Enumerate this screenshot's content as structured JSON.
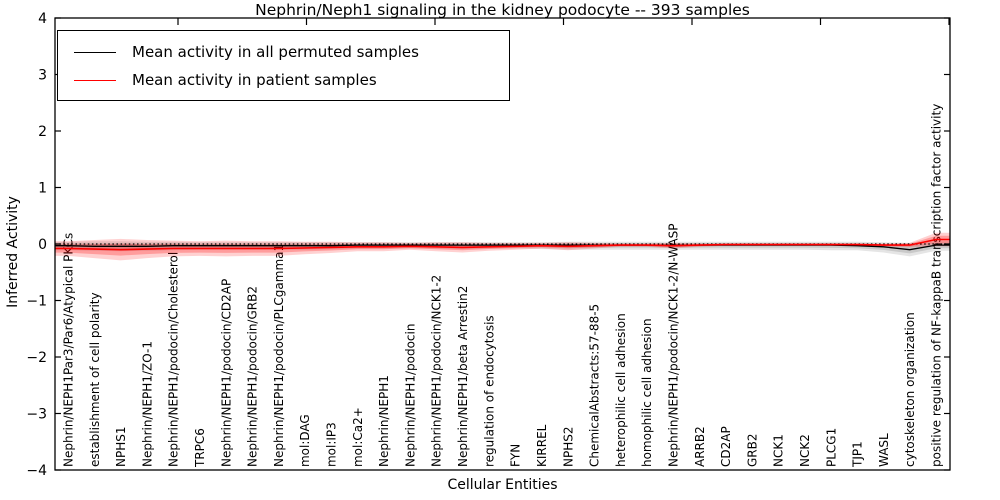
{
  "title": "Nephrin/Neph1 signaling in the kidney podocyte -- 393 samples",
  "xlabel": "Cellular Entities",
  "ylabel": "Inferred Activity",
  "legend": [
    {
      "label": "Mean activity in all permuted samples",
      "color": "#000000"
    },
    {
      "label": "Mean activity in patient samples",
      "color": "#ff0000"
    }
  ],
  "chart_data": {
    "type": "line",
    "title": "Nephrin/Neph1 signaling in the kidney podocyte -- 393 samples",
    "xlabel": "Cellular Entities",
    "ylabel": "Inferred Activity",
    "ylim": [
      -4,
      4
    ],
    "ytick_labels": [
      "4",
      "3",
      "2",
      "1",
      "0",
      "−1",
      "−2",
      "−3",
      "−4"
    ],
    "grid": false,
    "legend_position": "upper left",
    "threshold_line": 0,
    "categories": [
      "Nephrin/NEPH1Par3/Par6/Atypical PKCs",
      "establishment of cell polarity",
      "NPHS1",
      "Nephrin/NEPH1/ZO-1",
      "Nephrin/NEPH1/podocin/Cholesterol",
      "TRPC6",
      "Nephrin/NEPH1/podocin/CD2AP",
      "Nephrin/NEPH1/podocin/GRB2",
      "Nephrin/NEPH1/podocin/PLCgamma1",
      "mol:DAG",
      "mol:IP3",
      "mol:Ca2+",
      "Nephrin/NEPH1",
      "Nephrin/NEPH1/podocin",
      "Nephrin/NEPH1/podocin/NCK1-2",
      "Nephrin/NEPH1/beta Arrestin2",
      "regulation of endocytosis",
      "FYN",
      "KIRREL",
      "NPHS2",
      "ChemicalAbstracts:57-88-5",
      "heterophilic cell adhesion",
      "homophilic cell adhesion",
      "Nephrin/NEPH1/podocin/NCK1-2/N-WASP",
      "ARRB2",
      "CD2AP",
      "GRB2",
      "NCK1",
      "NCK2",
      "PLCG1",
      "TJP1",
      "WASL",
      "cytoskeleton organization",
      "positive regulation of NF-kappaB transcription factor activity"
    ],
    "series": [
      {
        "name": "Mean activity in all permuted samples",
        "color": "#000000",
        "band_color": "#000000",
        "values": [
          -0.03,
          -0.04,
          -0.04,
          -0.04,
          -0.03,
          -0.03,
          -0.03,
          -0.03,
          -0.03,
          -0.03,
          -0.03,
          -0.02,
          -0.02,
          -0.02,
          -0.02,
          -0.02,
          -0.02,
          -0.02,
          -0.02,
          -0.02,
          -0.02,
          -0.02,
          -0.02,
          -0.02,
          -0.02,
          -0.02,
          -0.02,
          -0.02,
          -0.02,
          -0.02,
          -0.03,
          -0.05,
          -0.1,
          -0.02
        ],
        "band_upper": [
          0.04,
          0.05,
          0.05,
          0.04,
          0.04,
          0.03,
          0.03,
          0.03,
          0.03,
          0.03,
          0.03,
          0.03,
          0.03,
          0.03,
          0.03,
          0.03,
          0.03,
          0.03,
          0.03,
          0.04,
          0.04,
          0.04,
          0.04,
          0.04,
          0.04,
          0.04,
          0.04,
          0.04,
          0.04,
          0.04,
          0.04,
          0.03,
          0.02,
          0.05
        ],
        "band_lower": [
          -0.11,
          -0.12,
          -0.13,
          -0.12,
          -0.11,
          -0.1,
          -0.1,
          -0.1,
          -0.1,
          -0.1,
          -0.09,
          -0.08,
          -0.08,
          -0.08,
          -0.08,
          -0.09,
          -0.08,
          -0.08,
          -0.09,
          -0.1,
          -0.1,
          -0.1,
          -0.1,
          -0.1,
          -0.1,
          -0.1,
          -0.1,
          -0.1,
          -0.1,
          -0.11,
          -0.11,
          -0.15,
          -0.22,
          -0.12
        ]
      },
      {
        "name": "Mean activity in patient samples",
        "color": "#ff0000",
        "band_color": "#ff0000",
        "values": [
          -0.08,
          -0.09,
          -0.1,
          -0.09,
          -0.08,
          -0.08,
          -0.08,
          -0.08,
          -0.08,
          -0.07,
          -0.06,
          -0.05,
          -0.05,
          -0.04,
          -0.05,
          -0.06,
          -0.05,
          -0.04,
          -0.03,
          -0.04,
          -0.03,
          -0.02,
          -0.02,
          -0.03,
          -0.02,
          -0.01,
          -0.01,
          -0.01,
          -0.01,
          -0.01,
          -0.01,
          -0.02,
          -0.02,
          0.08
        ],
        "band_upper": [
          0.05,
          0.07,
          0.09,
          0.07,
          0.06,
          0.05,
          0.06,
          0.05,
          0.05,
          0.04,
          0.04,
          0.03,
          0.03,
          0.02,
          0.03,
          0.03,
          0.02,
          0.02,
          0.02,
          0.03,
          0.02,
          0.01,
          0.01,
          0.02,
          0.01,
          0.01,
          0.01,
          0.01,
          0.01,
          0.01,
          0.01,
          0.01,
          0.02,
          0.2
        ],
        "band_lower": [
          -0.21,
          -0.25,
          -0.29,
          -0.25,
          -0.22,
          -0.21,
          -0.22,
          -0.21,
          -0.21,
          -0.18,
          -0.16,
          -0.13,
          -0.13,
          -0.1,
          -0.13,
          -0.15,
          -0.12,
          -0.1,
          -0.08,
          -0.11,
          -0.08,
          -0.05,
          -0.05,
          -0.08,
          -0.05,
          -0.03,
          -0.03,
          -0.03,
          -0.03,
          -0.03,
          -0.03,
          -0.05,
          -0.06,
          -0.04
        ]
      }
    ]
  }
}
